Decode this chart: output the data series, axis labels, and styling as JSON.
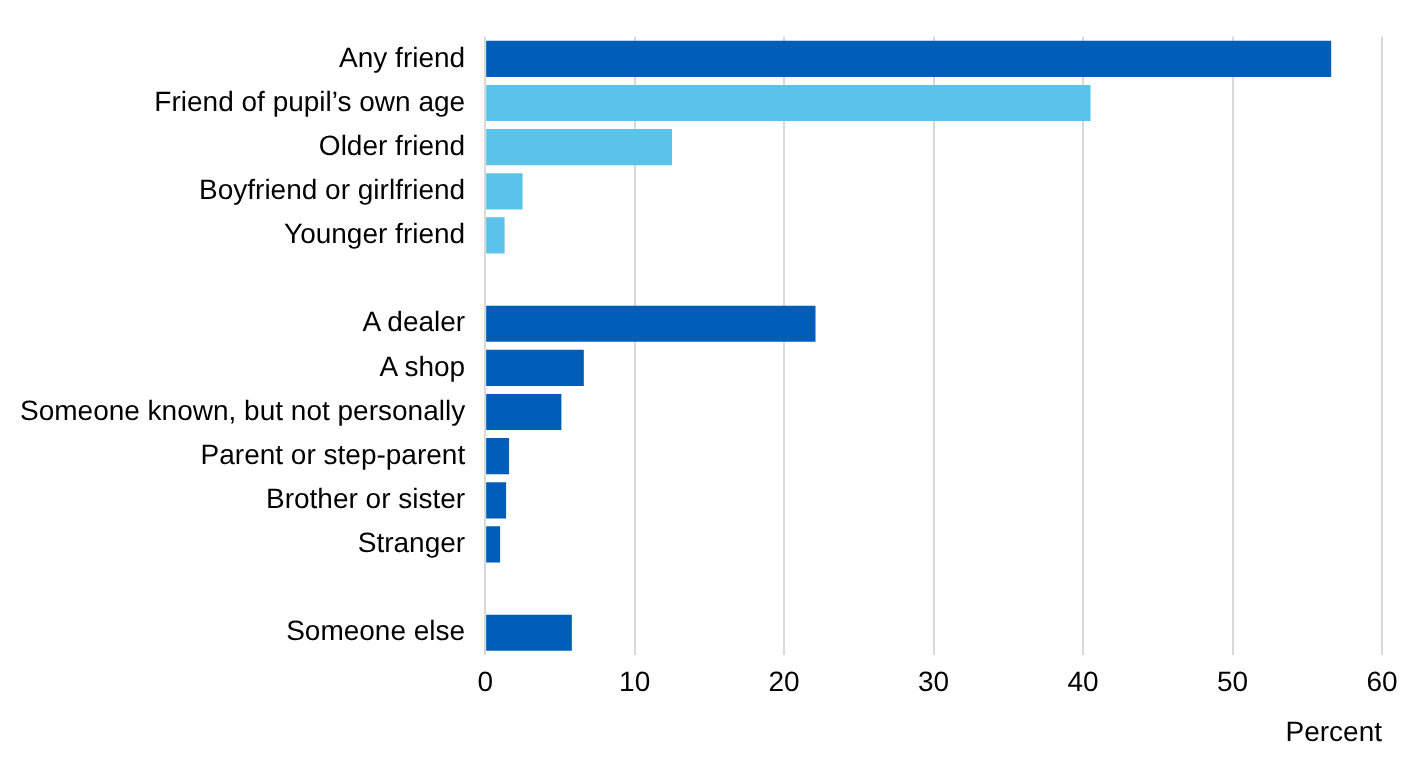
{
  "chart_data": {
    "type": "bar",
    "orientation": "horizontal",
    "xlabel": "Percent",
    "categories": [
      "Any friend",
      "Friend of pupil’s own age",
      "Older friend",
      "Boyfriend or girlfriend",
      "Younger friend",
      null,
      "A dealer",
      "A shop",
      "Someone known, but not personally",
      "Parent or step-parent",
      "Brother or sister",
      "Stranger",
      null,
      "Someone else"
    ],
    "values": [
      56.6,
      40.5,
      12.5,
      2.5,
      1.3,
      null,
      22.1,
      6.6,
      5.1,
      1.6,
      1.4,
      1.0,
      null,
      5.8
    ],
    "colors": [
      "#005eb8",
      "#5bc2e9",
      "#5bc2e9",
      "#5bc2e9",
      "#5bc2e9",
      "#005eb8",
      "#005eb8",
      "#005eb8",
      "#005eb8",
      "#005eb8",
      "#005eb8",
      "#005eb8",
      "#005eb8",
      "#005eb8"
    ],
    "xlim": [
      0,
      60
    ],
    "xticks": [
      0,
      10,
      20,
      30,
      40,
      50,
      60
    ],
    "grid": "x",
    "legend": false
  }
}
